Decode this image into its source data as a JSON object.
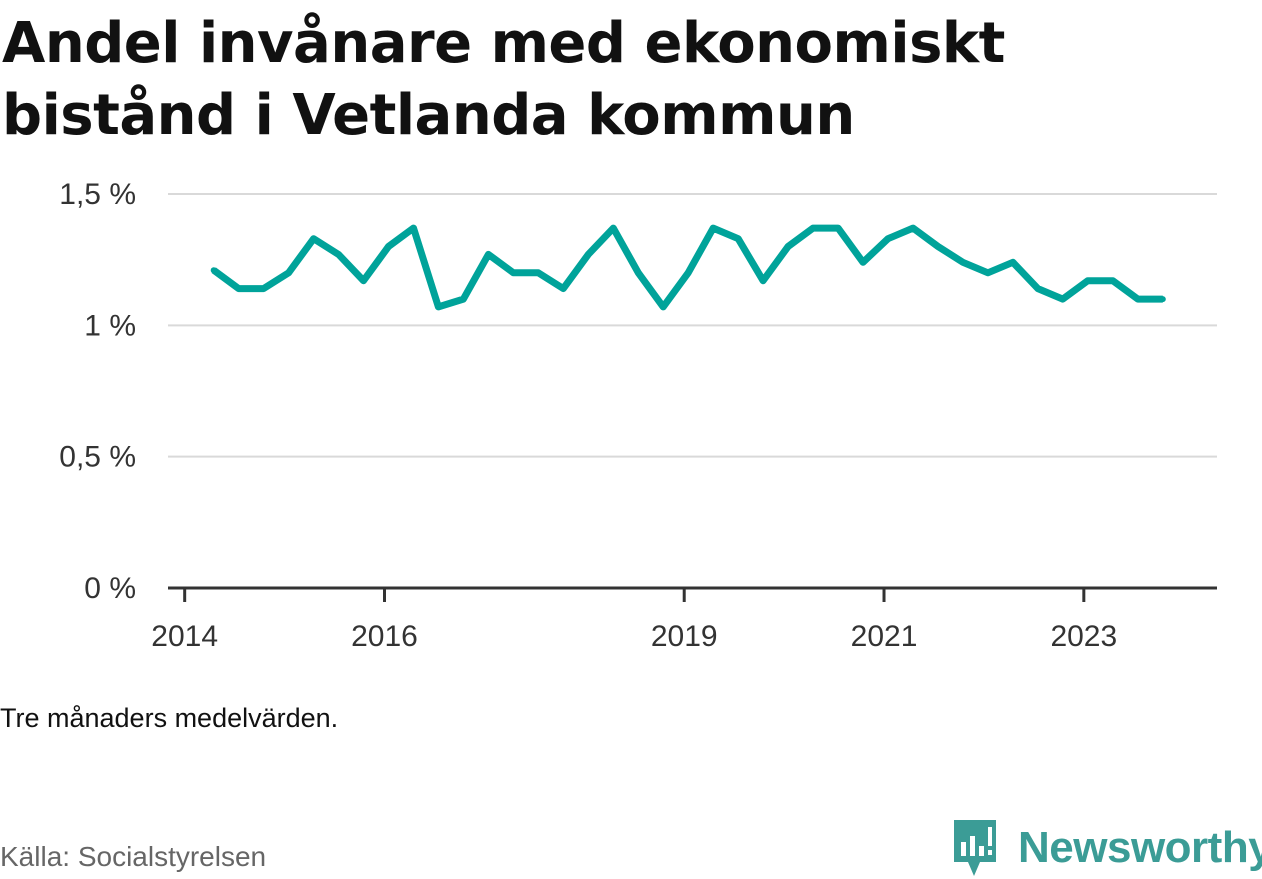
{
  "header": {
    "title": "Andel invånare med ekonomiskt bistånd i Vetlanda kommun"
  },
  "footer": {
    "note": "Tre månaders medelvärden.",
    "source": "Källa: Socialstyrelsen",
    "brand": "Newsworthy"
  },
  "colors": {
    "line": "#00a39a",
    "grid": "#d9d9d9",
    "axis": "#333333",
    "brand": "#3b9c96"
  },
  "chart_data": {
    "type": "line",
    "title": "Andel invånare med ekonomiskt bistånd i Vetlanda kommun",
    "xlabel": "",
    "ylabel": "",
    "ylim": [
      0,
      1.5
    ],
    "y_ticks": [
      0,
      0.5,
      1,
      1.5
    ],
    "y_tick_labels": [
      "0 %",
      "0,5 %",
      "1 %",
      "1,5 %"
    ],
    "x_range": [
      2013.833,
      2024.333
    ],
    "x_ticks": [
      2014,
      2016,
      2019,
      2021,
      2023
    ],
    "x_tick_labels": [
      "2014",
      "2016",
      "2019",
      "2021",
      "2023"
    ],
    "grid": true,
    "series": [
      {
        "name": "Andel invånare med ekonomiskt bistånd",
        "x": [
          2014.29,
          2014.54,
          2014.79,
          2015.04,
          2015.29,
          2015.54,
          2015.79,
          2016.04,
          2016.29,
          2016.54,
          2016.79,
          2017.04,
          2017.29,
          2017.54,
          2017.79,
          2018.04,
          2018.29,
          2018.54,
          2018.79,
          2019.04,
          2019.29,
          2019.54,
          2019.79,
          2020.04,
          2020.29,
          2020.54,
          2020.79,
          2021.04,
          2021.29,
          2021.54,
          2021.79,
          2022.04,
          2022.29,
          2022.54,
          2022.79,
          2023.04,
          2023.29,
          2023.54,
          2023.79
        ],
        "values": [
          1.21,
          1.14,
          1.14,
          1.2,
          1.33,
          1.27,
          1.17,
          1.3,
          1.37,
          1.07,
          1.1,
          1.27,
          1.2,
          1.2,
          1.14,
          1.27,
          1.37,
          1.2,
          1.07,
          1.2,
          1.37,
          1.33,
          1.17,
          1.3,
          1.37,
          1.37,
          1.24,
          1.33,
          1.37,
          1.3,
          1.24,
          1.2,
          1.24,
          1.14,
          1.1,
          1.17,
          1.17,
          1.1,
          1.1
        ]
      }
    ]
  }
}
